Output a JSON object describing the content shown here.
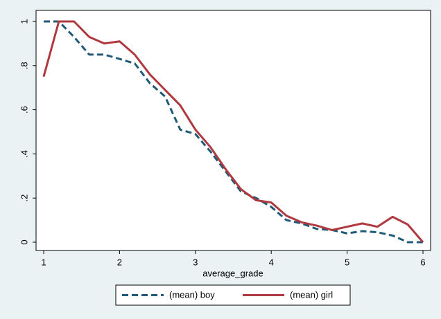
{
  "chart_data": {
    "type": "line",
    "x_label": "average_grade",
    "x": [
      1,
      1.2,
      1.4,
      1.6,
      1.8,
      2,
      2.2,
      2.4,
      2.6,
      2.8,
      3,
      3.2,
      3.4,
      3.6,
      3.8,
      4,
      4.2,
      4.4,
      4.6,
      4.8,
      5,
      5.2,
      5.4,
      5.6,
      5.8,
      6
    ],
    "series": [
      {
        "name": "(mean) boy",
        "color": "#1f5a78",
        "line_style": "dashed",
        "values": [
          1,
          1,
          0.93,
          0.85,
          0.85,
          0.83,
          0.81,
          0.72,
          0.66,
          0.51,
          0.49,
          0.41,
          0.32,
          0.23,
          0.2,
          0.16,
          0.1,
          0.085,
          0.06,
          0.055,
          0.04,
          0.05,
          0.045,
          0.03,
          0,
          0
        ]
      },
      {
        "name": "(mean) girl",
        "color": "#b0383f",
        "line_style": "solid",
        "values": [
          0.75,
          1,
          1,
          0.93,
          0.9,
          0.91,
          0.85,
          0.76,
          0.69,
          0.62,
          0.51,
          0.43,
          0.33,
          0.24,
          0.19,
          0.18,
          0.12,
          0.09,
          0.075,
          0.055,
          0.07,
          0.085,
          0.07,
          0.115,
          0.08,
          0
        ]
      }
    ],
    "xlim": [
      1,
      6
    ],
    "xticks": [
      1,
      2,
      3,
      4,
      5,
      6
    ],
    "ylim": [
      0,
      1
    ],
    "yticks": [
      0,
      {
        "value": 0.2,
        "label": ".2"
      },
      {
        "value": 0.4,
        "label": ".4"
      },
      {
        "value": 0.6,
        "label": ".6"
      },
      {
        "value": 0.8,
        "label": ".8"
      },
      1
    ],
    "legend": "bottom"
  }
}
